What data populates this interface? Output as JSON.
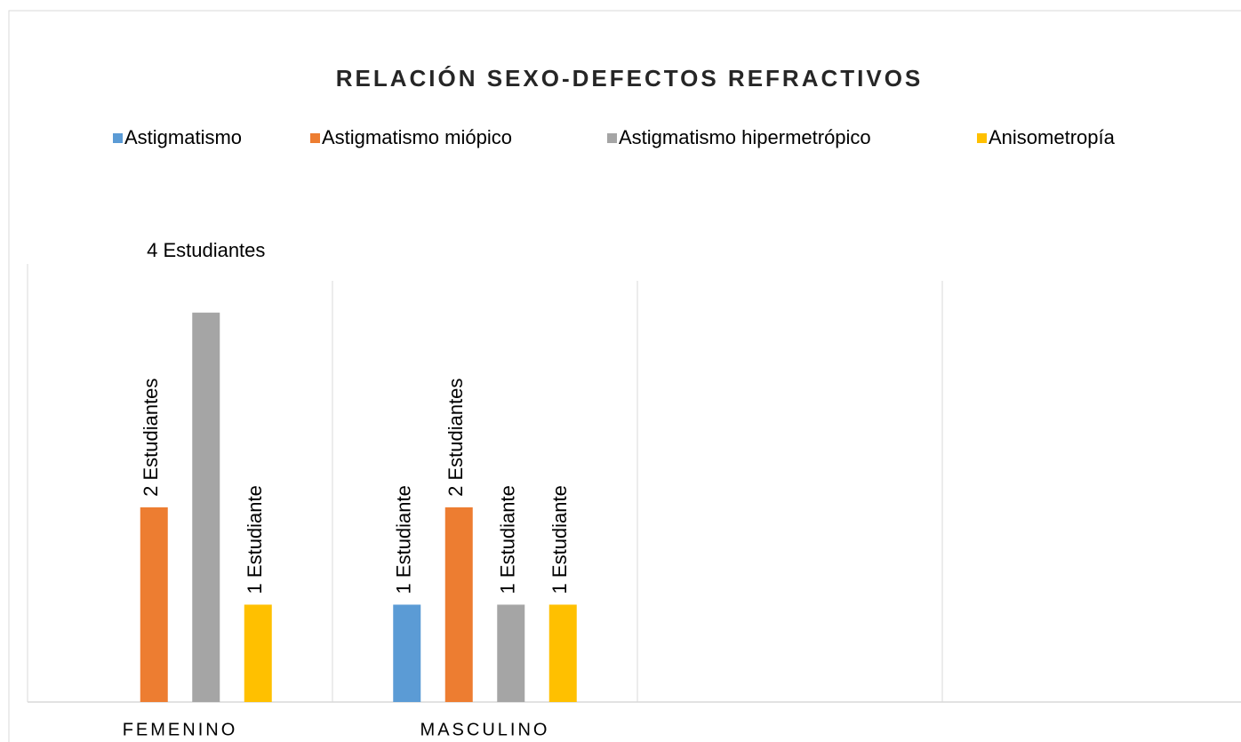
{
  "chart_data": {
    "type": "bar",
    "title": "RELACIÓN SEXO-DEFECTOS REFRACTIVOS",
    "categories": [
      "FEMENINO",
      "MASCULINO",
      null,
      null
    ],
    "series": [
      {
        "name": "Astigmatismo",
        "color": "#5b9bd5",
        "values": [
          null,
          1,
          null,
          null
        ],
        "value_labels": [
          null,
          "1 Estudiante",
          null,
          null
        ]
      },
      {
        "name": "Astigmatismo miópico",
        "color": "#ed7d31",
        "values": [
          2,
          2,
          null,
          null
        ],
        "value_labels": [
          "2 Estudiantes",
          "2 Estudiantes",
          null,
          null
        ]
      },
      {
        "name": "Astigmatismo hipermetrópico",
        "color": "#a5a5a5",
        "values": [
          4,
          1,
          null,
          null
        ],
        "value_labels": [
          "4 Estudiantes",
          "1 Estudiante",
          null,
          null
        ]
      },
      {
        "name": "Anisometropía",
        "color": "#ffc000",
        "values": [
          1,
          1,
          null,
          null
        ],
        "value_labels": [
          "1 Estudiante",
          "1 Estudiante",
          null,
          null
        ]
      }
    ],
    "ylim": [
      0,
      4.5
    ],
    "legend": "top"
  }
}
